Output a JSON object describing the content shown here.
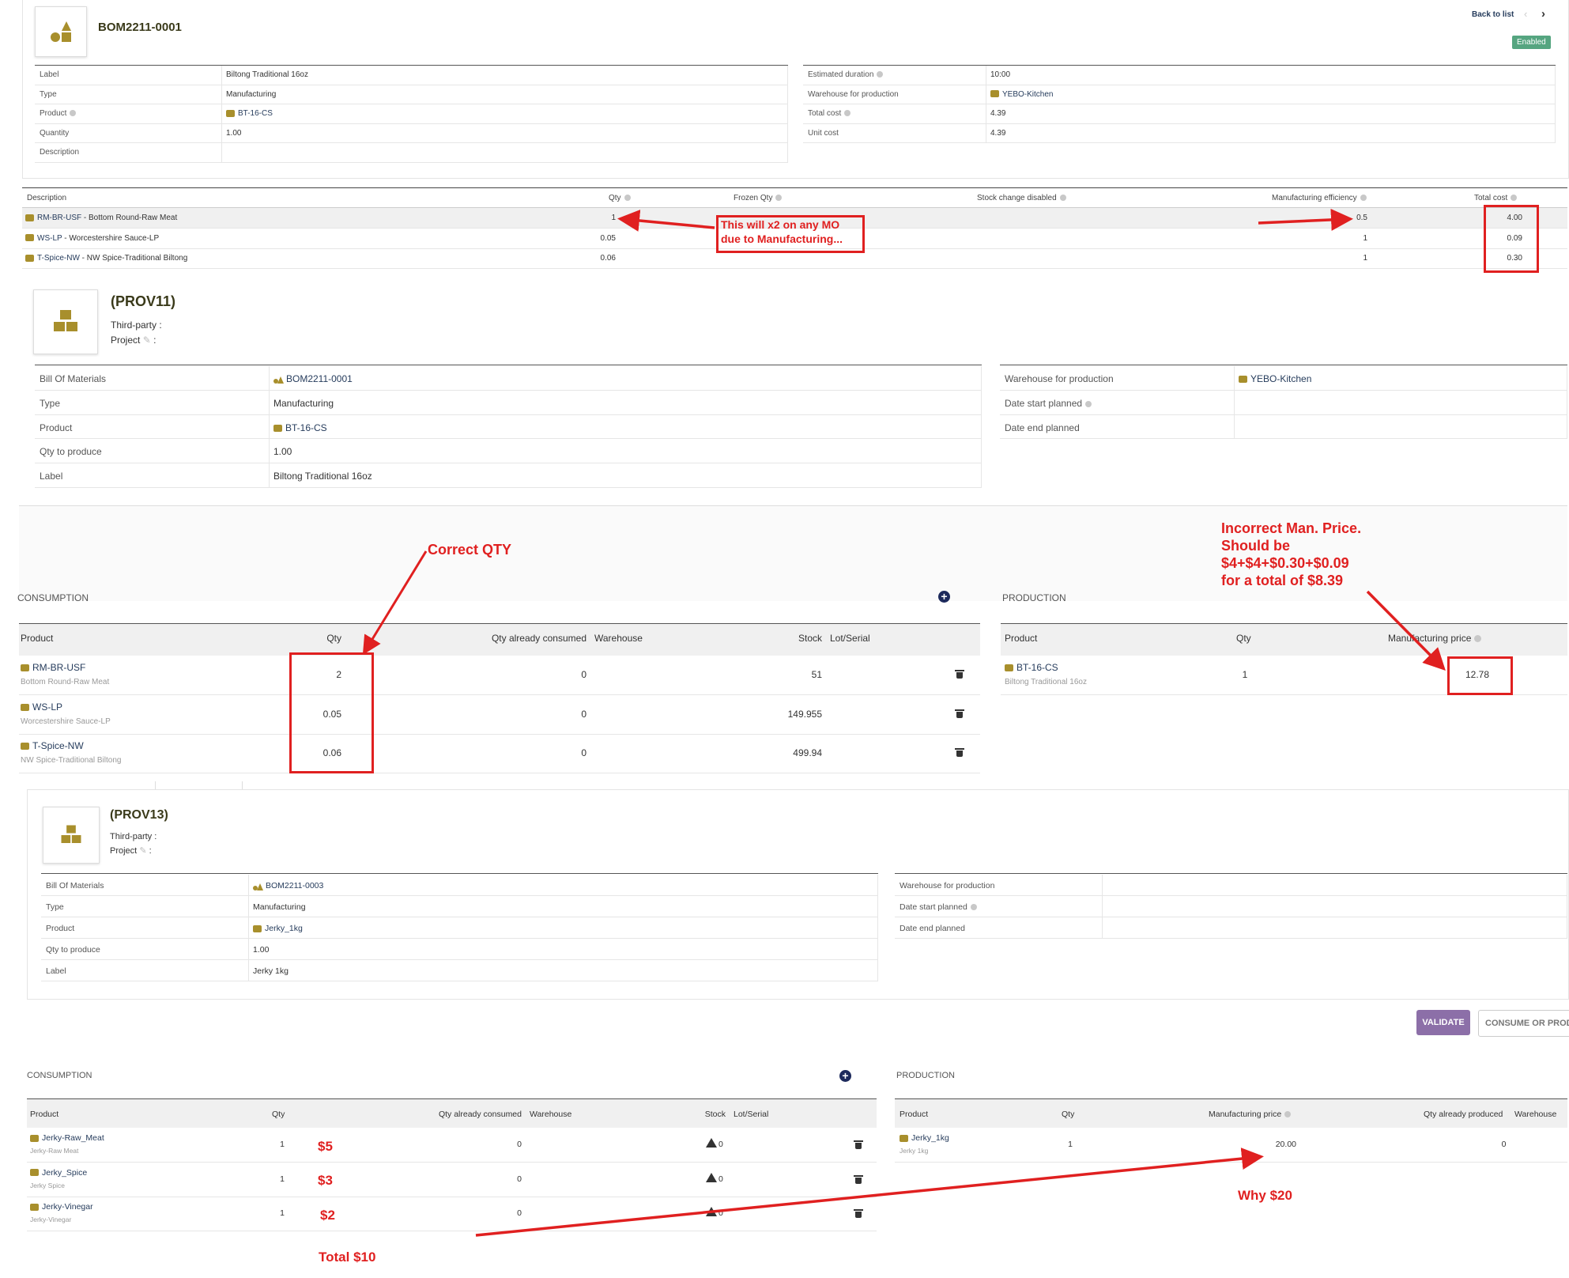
{
  "bom": {
    "ref": "BOM2211-0001",
    "back_to_list": "Back to list",
    "status": "Enabled",
    "left_fields": [
      {
        "label": "Label",
        "value": "Biltong Traditional 16oz"
      },
      {
        "label": "Type",
        "value": "Manufacturing"
      },
      {
        "label": "Product",
        "value": "BT-16-CS"
      },
      {
        "label": "Quantity",
        "value": "1.00"
      },
      {
        "label": "Description",
        "value": ""
      }
    ],
    "right_fields": [
      {
        "label": "Estimated duration",
        "value": "10:00"
      },
      {
        "label": "Warehouse for production",
        "value": "YEBO-Kitchen"
      },
      {
        "label": "Total cost",
        "value": "4.39"
      },
      {
        "label": "Unit cost",
        "value": "4.39"
      }
    ],
    "lines_headers": [
      "Description",
      "Qty",
      "Frozen Qty",
      "Stock change disabled",
      "Manufacturing efficiency",
      "Total cost"
    ],
    "lines": [
      {
        "code": "RM-BR-USF",
        "desc": " - Bottom Round-Raw Meat",
        "qty": "1",
        "eff": "0.5",
        "cost": "4.00"
      },
      {
        "code": "WS-LP",
        "desc": " - Worcestershire Sauce-LP",
        "qty": "0.05",
        "eff": "1",
        "cost": "0.09"
      },
      {
        "code": "T-Spice-NW",
        "desc": " - NW Spice-Traditional Biltong",
        "qty": "0.06",
        "eff": "1",
        "cost": "0.30"
      }
    ]
  },
  "mo1": {
    "ref": "(PROV11)",
    "third_party": "Third-party :",
    "project": "Project",
    "project_colon": ":",
    "left_fields": [
      {
        "label": "Bill Of Materials",
        "value": "BOM2211-0001"
      },
      {
        "label": "Type",
        "value": "Manufacturing"
      },
      {
        "label": "Product",
        "value": "BT-16-CS"
      },
      {
        "label": "Qty to produce",
        "value": "1.00"
      },
      {
        "label": "Label",
        "value": "Biltong Traditional 16oz"
      }
    ],
    "right_fields": [
      {
        "label": "Warehouse for production",
        "value": "YEBO-Kitchen"
      },
      {
        "label": "Date start planned",
        "value": ""
      },
      {
        "label": "Date end planned",
        "value": ""
      }
    ],
    "consumption_title": "CONSUMPTION",
    "production_title": "PRODUCTION",
    "cons_headers": [
      "Product",
      "Qty",
      "Qty already consumed",
      "Warehouse",
      "Stock",
      "Lot/Serial"
    ],
    "cons_rows": [
      {
        "code": "RM-BR-USF",
        "sub": "Bottom Round-Raw Meat",
        "qty": "2",
        "consumed": "0",
        "stock": "51"
      },
      {
        "code": "WS-LP",
        "sub": "Worcestershire Sauce-LP",
        "qty": "0.05",
        "consumed": "0",
        "stock": "149.955"
      },
      {
        "code": "T-Spice-NW",
        "sub": "NW Spice-Traditional Biltong",
        "qty": "0.06",
        "consumed": "0",
        "stock": "499.94"
      }
    ],
    "prod_headers": [
      "Product",
      "Qty",
      "Manufacturing price"
    ],
    "prod_rows": [
      {
        "code": "BT-16-CS",
        "sub": "Biltong Traditional 16oz",
        "qty": "1",
        "price": "12.78"
      }
    ]
  },
  "mo2": {
    "ref": "(PROV13)",
    "third_party": "Third-party :",
    "project": "Project",
    "project_colon": ":",
    "left_fields": [
      {
        "label": "Bill Of Materials",
        "value": "BOM2211-0003"
      },
      {
        "label": "Type",
        "value": "Manufacturing"
      },
      {
        "label": "Product",
        "value": "Jerky_1kg"
      },
      {
        "label": "Qty to produce",
        "value": "1.00"
      },
      {
        "label": "Label",
        "value": "Jerky 1kg"
      }
    ],
    "right_fields": [
      {
        "label": "Warehouse for production",
        "value": ""
      },
      {
        "label": "Date start planned",
        "value": ""
      },
      {
        "label": "Date end planned",
        "value": ""
      }
    ],
    "validate_label": "VALIDATE",
    "consume_label": "CONSUME OR PROD",
    "consumption_title": "CONSUMPTION",
    "production_title": "PRODUCTION",
    "cons_headers": [
      "Product",
      "Qty",
      "Qty already consumed",
      "Warehouse",
      "Stock",
      "Lot/Serial"
    ],
    "cons_rows": [
      {
        "code": "Jerky-Raw_Meat",
        "sub": "Jerky-Raw Meat",
        "qty": "1",
        "consumed": "0",
        "stock": "0"
      },
      {
        "code": "Jerky_Spice",
        "sub": "Jerky Spice",
        "qty": "1",
        "consumed": "0",
        "stock": "0"
      },
      {
        "code": "Jerky-Vinegar",
        "sub": "Jerky-Vinegar",
        "qty": "1",
        "consumed": "0",
        "stock": "0"
      }
    ],
    "prod_headers": [
      "Product",
      "Qty",
      "Manufacturing price",
      "Qty already produced",
      "Warehouse"
    ],
    "prod_rows": [
      {
        "code": "Jerky_1kg",
        "sub": "Jerky 1kg",
        "qty": "1",
        "price": "20.00",
        "produced": "0"
      }
    ]
  },
  "annotations": {
    "x2_line1": "This will  x2 on any MO",
    "x2_line2": "due to Manufacturing...",
    "correct_qty": "Correct QTY",
    "incorrect_l1": "Incorrect Man. Price.",
    "incorrect_l2": "Should be",
    "incorrect_l3": "$4+$4+$0.30+$0.09",
    "incorrect_l4": "for a total of $8.39",
    "p5": "$5",
    "p3": "$3",
    "p2": "$2",
    "total": "Total $10",
    "why": "Why $20"
  },
  "colors": {
    "accent_red": "#e02020",
    "enabled_green": "#55a580",
    "validate_purple": "#8c6fa8",
    "icon_gold": "#a88f2c"
  }
}
